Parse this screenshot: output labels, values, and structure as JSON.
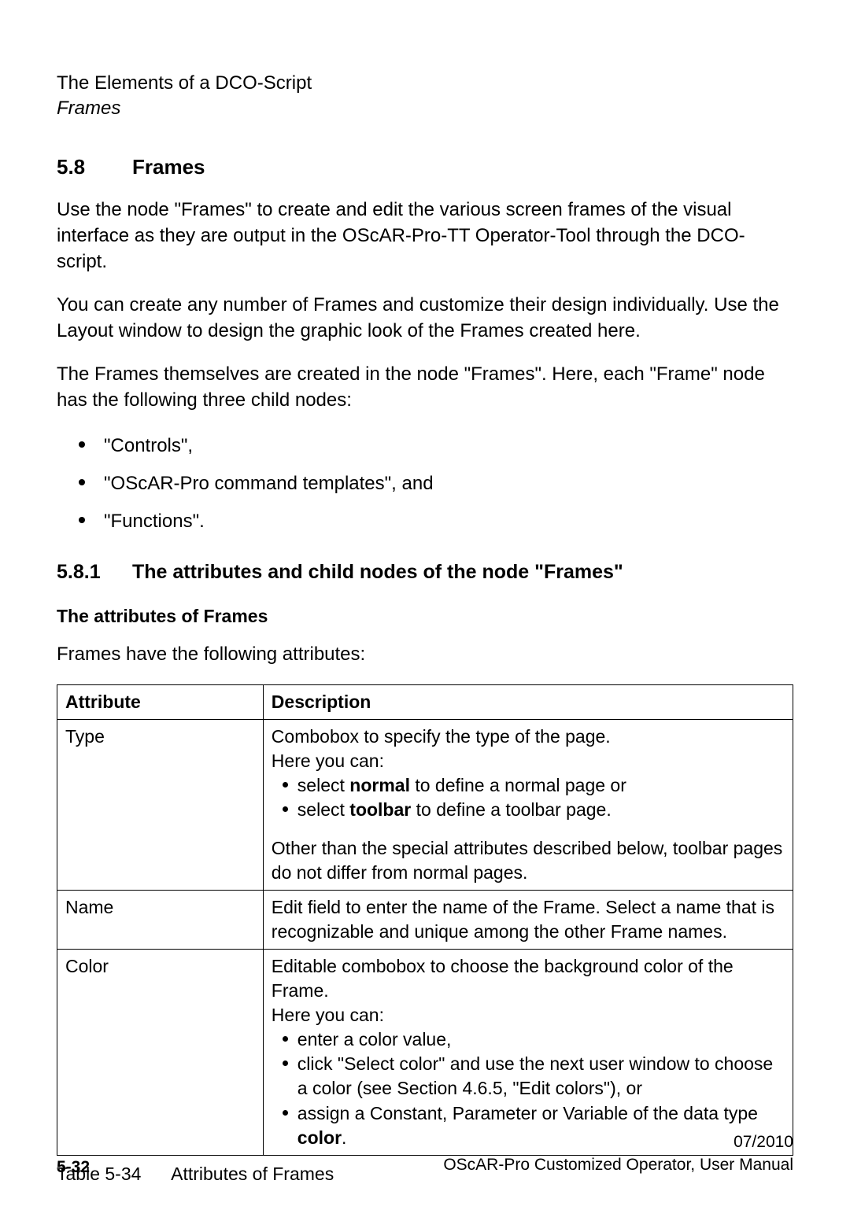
{
  "header": {
    "title": "The Elements of a DCO-Script",
    "subtitle": "Frames"
  },
  "section": {
    "number": "5.8",
    "title": "Frames",
    "paragraphs": [
      "Use the node \"Frames\" to create and edit the various screen frames of the visual interface as they are output in the OScAR-Pro-TT Operator-Tool through the DCO-script.",
      "You can create any number of Frames and customize their design individually. Use the Layout window to design the graphic look of the Frames created here.",
      "The Frames themselves are created in the node \"Frames\". Here, each \"Frame\" node has the following three child nodes:"
    ],
    "bullets": [
      "\"Controls\",",
      "\"OScAR-Pro command templates\", and",
      "\"Functions\"."
    ]
  },
  "subsection": {
    "number": "5.8.1",
    "title": "The attributes and child nodes of the node \"Frames\"",
    "subheading": "The attributes of Frames",
    "intro": "Frames have the following attributes:"
  },
  "table": {
    "columns": [
      "Attribute",
      "Description"
    ],
    "rows": [
      {
        "attr": "Type",
        "desc_lines_top": [
          "Combobox to specify the type of the page.",
          "Here you can:"
        ],
        "desc_bullets": [
          {
            "pre": "select ",
            "bold": "normal",
            "post": " to define a normal page or"
          },
          {
            "pre": "select ",
            "bold": "toolbar",
            "post": " to define a toolbar page."
          }
        ],
        "desc_lines_bottom": [
          "Other than the special attributes described below, toolbar pages do not differ from normal pages."
        ]
      },
      {
        "attr": "Name",
        "desc_plain": "Edit field to enter the name of the Frame. Select a name that is recognizable and unique among the other Frame names."
      },
      {
        "attr": "Color",
        "desc_lines_top": [
          "Editable combobox to choose the background color of the Frame.",
          "Here you can:"
        ],
        "desc_bullets": [
          {
            "pre": "enter a color value,",
            "bold": "",
            "post": ""
          },
          {
            "pre": "click \"Select color\" and use the next user window to choose a color (see Section 4.6.5, \"Edit colors\"), or",
            "bold": "",
            "post": ""
          },
          {
            "pre": "assign a Constant, Parameter or Variable of the data type ",
            "bold": "color",
            "post": "."
          }
        ],
        "desc_lines_bottom": []
      }
    ],
    "caption_num": "Table 5-34",
    "caption_text": "Attributes of Frames"
  },
  "footer": {
    "page_number": "5-32",
    "date": "07/2010",
    "doc_title": "OScAR-Pro Customized Operator, User Manual"
  }
}
